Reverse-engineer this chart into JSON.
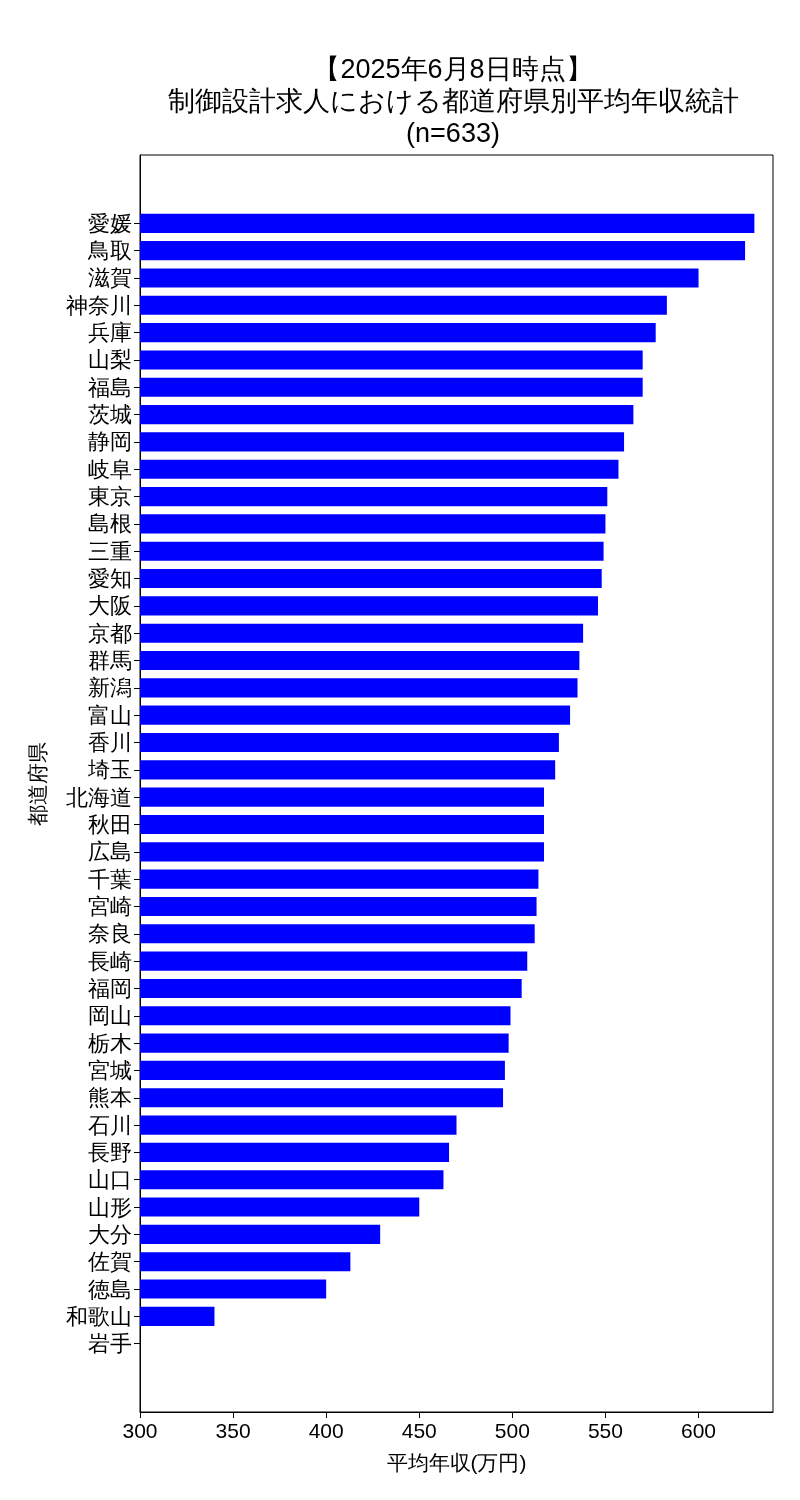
{
  "chart_data": {
    "type": "bar",
    "orientation": "horizontal",
    "title": "【2025年6月8日時点】",
    "subtitle": "制御設計求人における都道府県別平均年収統計",
    "annotations": [
      "(n=633)"
    ],
    "xlabel": "平均年収(万円)",
    "ylabel": "都道府県",
    "categories": [
      "愛媛",
      "鳥取",
      "滋賀",
      "神奈川",
      "兵庫",
      "山梨",
      "福島",
      "茨城",
      "静岡",
      "岐阜",
      "東京",
      "島根",
      "三重",
      "愛知",
      "大阪",
      "京都",
      "群馬",
      "新潟",
      "富山",
      "香川",
      "埼玉",
      "北海道",
      "秋田",
      "広島",
      "千葉",
      "宮崎",
      "奈良",
      "長崎",
      "福岡",
      "岡山",
      "栃木",
      "宮城",
      "熊本",
      "石川",
      "長野",
      "山口",
      "山形",
      "大分",
      "佐賀",
      "徳島",
      "和歌山",
      "岩手"
    ],
    "values": [
      630,
      625,
      600,
      583,
      577,
      570,
      570,
      565,
      560,
      557,
      551,
      550,
      549,
      548,
      546,
      538,
      536,
      535,
      531,
      525,
      523,
      517,
      517,
      517,
      514,
      513,
      512,
      508,
      505,
      499,
      498,
      496,
      495,
      470,
      466,
      463,
      450,
      429,
      413,
      400,
      340,
      null
    ],
    "color": "#0000ff",
    "xlim": [
      300,
      640
    ],
    "xticks": [
      300,
      350,
      400,
      450,
      500,
      550,
      600
    ]
  }
}
